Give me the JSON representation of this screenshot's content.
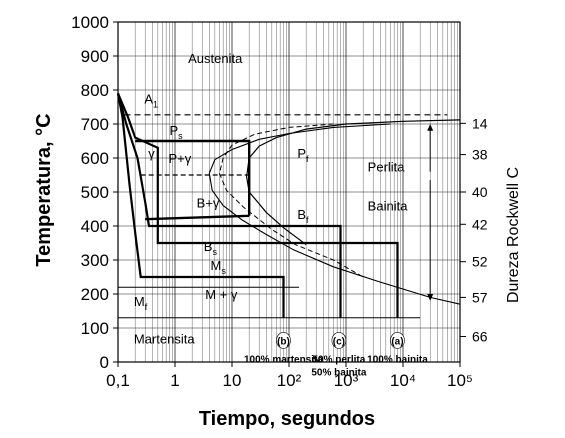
{
  "chart_data": {
    "type": "line",
    "xlabel": "Tiempo, segundos",
    "ylabel": "Temperatura, °C",
    "y2label": "Dureza Rockwell C",
    "xscale": "log",
    "xlim": [
      0.1,
      100000
    ],
    "ylim": [
      0,
      1000
    ],
    "grid": true,
    "x_ticks": [
      {
        "value": 0.1,
        "label": "0,1"
      },
      {
        "value": 1,
        "label": "1"
      },
      {
        "value": 10,
        "label": "10"
      },
      {
        "value": 100,
        "label": "10²"
      },
      {
        "value": 1000,
        "label": "10³"
      },
      {
        "value": 10000,
        "label": "10⁴"
      },
      {
        "value": 100000,
        "label": "10⁵"
      }
    ],
    "y_ticks": [
      0,
      100,
      200,
      300,
      400,
      500,
      600,
      700,
      800,
      900,
      1000
    ],
    "hardness": [
      {
        "value": "14",
        "temp": 702
      },
      {
        "value": "38",
        "temp": 610
      },
      {
        "value": "40",
        "temp": 500
      },
      {
        "value": "42",
        "temp": 405
      },
      {
        "value": "52",
        "temp": 295
      },
      {
        "value": "57",
        "temp": 190
      },
      {
        "value": "66",
        "temp": 75
      }
    ],
    "regions": [
      {
        "key": "austenita",
        "text": "Austenita",
        "x": 1.7,
        "y": 880
      },
      {
        "key": "a1",
        "text": "A",
        "sub": "1",
        "x": 0.29,
        "y": 760
      },
      {
        "key": "ps",
        "text": "P",
        "sub": "s",
        "x": 0.8,
        "y": 668
      },
      {
        "key": "gamma",
        "text": "γ",
        "x": 0.34,
        "y": 600
      },
      {
        "key": "p_gamma",
        "text": "P+γ",
        "x": 0.77,
        "y": 585
      },
      {
        "key": "pf",
        "text": "P",
        "sub": "f",
        "x": 140,
        "y": 600
      },
      {
        "key": "perlita",
        "text": "Perlita",
        "x": 2400,
        "y": 560
      },
      {
        "key": "b_gamma",
        "text": "B+γ",
        "x": 2.4,
        "y": 455
      },
      {
        "key": "bf",
        "text": "B",
        "sub": "f",
        "x": 140,
        "y": 420
      },
      {
        "key": "bainita",
        "text": "Bainita",
        "x": 2400,
        "y": 445
      },
      {
        "key": "bs",
        "text": "B",
        "sub": "s",
        "x": 3.2,
        "y": 327
      },
      {
        "key": "ms",
        "text": "M",
        "sub": "s",
        "x": 4.2,
        "y": 270
      },
      {
        "key": "mf",
        "text": "M",
        "sub": "f",
        "x": 0.19,
        "y": 165
      },
      {
        "key": "m_gamma",
        "text": "M + γ",
        "x": 3.4,
        "y": 185
      },
      {
        "key": "martensita",
        "text": "Martensita",
        "x": 0.19,
        "y": 55
      }
    ],
    "curve_labels": [
      {
        "key": "b",
        "marker": "(b)",
        "caption": [
          "100% martensita"
        ],
        "x": 80
      },
      {
        "key": "c",
        "marker": "(c)",
        "caption": [
          "50% perlita",
          "50% bainita"
        ],
        "x": 750
      },
      {
        "key": "a",
        "marker": "(a)",
        "caption": [
          "100% bainita"
        ],
        "x": 8000
      }
    ],
    "lines": {
      "a1_temp": 727,
      "ms_temp": 220,
      "mf_temp": 130,
      "mf2_temp": 250,
      "ps_curve": [
        [
          6000,
          700
        ],
        [
          600,
          690
        ],
        [
          100,
          672
        ],
        [
          30,
          655
        ],
        [
          10,
          625
        ],
        [
          5,
          595
        ],
        [
          4,
          555
        ],
        [
          4.5,
          505
        ],
        [
          7,
          460
        ],
        [
          15,
          418
        ],
        [
          40,
          375
        ],
        [
          120,
          330
        ],
        [
          600,
          280
        ],
        [
          4000,
          235
        ],
        [
          30000,
          190
        ],
        [
          100000,
          170
        ]
      ],
      "pf_curve": [
        [
          100000,
          712
        ],
        [
          10000,
          708
        ],
        [
          1000,
          700
        ],
        [
          200,
          685
        ],
        [
          60,
          660
        ],
        [
          30,
          635
        ],
        [
          20,
          600
        ],
        [
          18,
          545
        ],
        [
          20,
          500
        ],
        [
          40,
          440
        ],
        [
          80,
          395
        ],
        [
          200,
          345
        ]
      ],
      "mid_curve": [
        [
          600,
          700
        ],
        [
          100,
          690
        ],
        [
          25,
          670
        ],
        [
          10,
          638
        ],
        [
          7,
          600
        ],
        [
          6,
          555
        ],
        [
          8,
          505
        ],
        [
          16,
          455
        ],
        [
          50,
          390
        ],
        [
          130,
          345
        ],
        [
          600,
          300
        ],
        [
          2000,
          250
        ]
      ],
      "cool_b": [
        [
          0.1,
          790
        ],
        [
          0.12,
          720
        ],
        [
          0.16,
          520
        ],
        [
          0.2,
          380
        ],
        [
          0.25,
          250
        ],
        [
          0.45,
          250
        ],
        [
          80,
          250
        ],
        [
          80,
          130
        ]
      ],
      "cool_c": [
        [
          0.1,
          790
        ],
        [
          0.14,
          700
        ],
        [
          0.22,
          600
        ],
        [
          0.3,
          470
        ],
        [
          0.35,
          400
        ],
        [
          20,
          400
        ],
        [
          800,
          400
        ],
        [
          800,
          130
        ]
      ],
      "cool_a": [
        [
          0.1,
          790
        ],
        [
          0.15,
          720
        ],
        [
          0.2,
          660
        ],
        [
          0.5,
          630
        ],
        [
          0.5,
          350
        ],
        [
          8000,
          350
        ],
        [
          8000,
          130
        ]
      ],
      "box_top": [
        [
          0.2,
          650
        ],
        [
          20,
          650
        ],
        [
          20,
          430
        ]
      ],
      "dashed_iso": [
        [
          0.25,
          550
        ],
        [
          20,
          550
        ]
      ]
    }
  }
}
